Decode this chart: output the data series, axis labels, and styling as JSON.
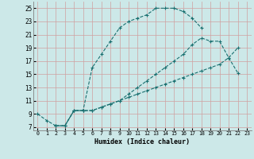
{
  "xlabel": "Humidex (Indice chaleur)",
  "bg_color": "#cce8e8",
  "line_color": "#1a7070",
  "grid_color": "#b8d8d8",
  "xlim": [
    -0.5,
    23.5
  ],
  "ylim": [
    6.5,
    26
  ],
  "xticks": [
    0,
    1,
    2,
    3,
    4,
    5,
    6,
    7,
    8,
    9,
    10,
    11,
    12,
    13,
    14,
    15,
    16,
    17,
    18,
    19,
    20,
    21,
    22,
    23
  ],
  "yticks": [
    7,
    9,
    11,
    13,
    15,
    17,
    19,
    21,
    23,
    25
  ],
  "line1_x": [
    0,
    1,
    2,
    3,
    4,
    5,
    6,
    7,
    8,
    9,
    10,
    11,
    12,
    13,
    14,
    15,
    16,
    17,
    18
  ],
  "line1_y": [
    9,
    8,
    7.2,
    7.2,
    9.5,
    9.5,
    16,
    18,
    20,
    22,
    23,
    23.5,
    24,
    25,
    25,
    25,
    24.5,
    23.5,
    22
  ],
  "line2_x": [
    2,
    3,
    4,
    5,
    6,
    7,
    8,
    9,
    10,
    11,
    12,
    13,
    14,
    15,
    16,
    17,
    18,
    19,
    20,
    21,
    22,
    23
  ],
  "line2_y": [
    7.2,
    7.2,
    9.5,
    9.5,
    9.5,
    10,
    10.5,
    11,
    12,
    13,
    14,
    15,
    16,
    17,
    18,
    19.5,
    20.5,
    20,
    20,
    17.5,
    15.2,
    null
  ],
  "line3_x": [
    2,
    3,
    4,
    5,
    6,
    7,
    8,
    9,
    10,
    11,
    12,
    13,
    14,
    15,
    16,
    17,
    18,
    19,
    20,
    21,
    22,
    23
  ],
  "line3_y": [
    7.2,
    7.2,
    9.5,
    9.5,
    9.5,
    10,
    10.5,
    11,
    11.5,
    12,
    12.5,
    13,
    13.5,
    14,
    14.5,
    15,
    15.5,
    16,
    16.5,
    17.5,
    19,
    null
  ]
}
